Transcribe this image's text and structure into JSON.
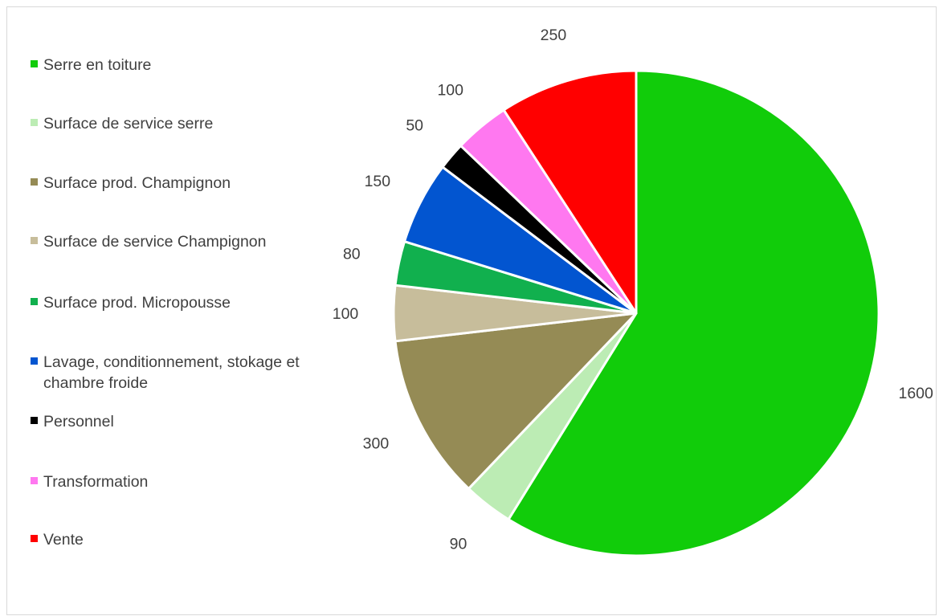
{
  "chart_data": {
    "type": "pie",
    "categories": [
      "Serre en toiture",
      "Surface de service serre",
      "Surface prod. Champignon",
      "Surface de service Champignon",
      "Surface prod. Micropousse",
      "Lavage, conditionnement, stokage et chambre froide",
      "Personnel",
      "Transformation",
      "Vente"
    ],
    "values": [
      1600,
      90,
      300,
      100,
      80,
      150,
      50,
      100,
      250
    ],
    "colors": [
      "#11cc0a",
      "#bcecb4",
      "#958b55",
      "#c7bd9b",
      "#11b04e",
      "#0255d0",
      "#000000",
      "#ff78f0",
      "#ff0000"
    ],
    "legend_position": "left",
    "start_angle_deg": 0,
    "direction": "clockwise",
    "slice_border_color": "#ffffff"
  }
}
